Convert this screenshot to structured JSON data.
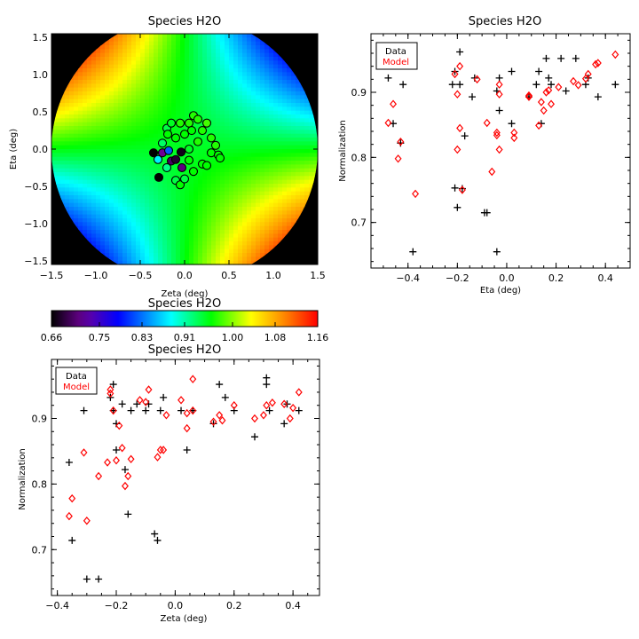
{
  "chart_data": [
    {
      "type": "heatmap",
      "title": "Species H2O",
      "xlabel": "Zeta (deg)",
      "ylabel": "Eta (deg)",
      "xlim": [
        -1.5,
        1.5
      ],
      "ylim": [
        -1.55,
        1.55
      ],
      "xticks": [
        "−1.5",
        "−1.0",
        "−0.5",
        "0.0",
        "0.5",
        "1.0",
        "1.5"
      ],
      "yticks": [
        "−1.5",
        "−1.0",
        "−0.5",
        "0.0",
        "0.5",
        "1.0",
        "1.5"
      ],
      "field_description": "circular field of radius 1.5 deg, saddle-shaped normalization map: high (red) toward upper-left and lower-right, low (black/purple) toward lower-left and upper-right, cyan near centre",
      "points": [
        {
          "x": -0.35,
          "y": -0.05,
          "v": 0.66
        },
        {
          "x": -0.3,
          "y": -0.14,
          "v": 0.88
        },
        {
          "x": -0.29,
          "y": -0.38,
          "v": 0.66
        },
        {
          "x": -0.25,
          "y": -0.05,
          "v": 0.72
        },
        {
          "x": -0.18,
          "y": -0.02,
          "v": 0.82
        },
        {
          "x": -0.15,
          "y": -0.16,
          "v": 0.7
        },
        {
          "x": -0.1,
          "y": -0.14,
          "v": 0.68
        },
        {
          "x": -0.04,
          "y": -0.04,
          "v": 0.67
        },
        {
          "x": -0.03,
          "y": -0.25,
          "v": 0.71
        },
        {
          "x": -0.25,
          "y": 0.08,
          "v": 0.93
        },
        {
          "x": -0.2,
          "y": 0.28,
          "v": 0.94
        },
        {
          "x": -0.19,
          "y": 0.2,
          "v": 0.96
        },
        {
          "x": -0.1,
          "y": 0.15,
          "v": 0.96
        },
        {
          "x": -0.05,
          "y": 0.35,
          "v": 0.97
        },
        {
          "x": 0.05,
          "y": 0.35,
          "v": 0.97
        },
        {
          "x": 0.08,
          "y": 0.25,
          "v": 0.96
        },
        {
          "x": 0.15,
          "y": 0.1,
          "v": 0.97
        },
        {
          "x": 0.2,
          "y": 0.25,
          "v": 0.97
        },
        {
          "x": 0.25,
          "y": 0.35,
          "v": 0.98
        },
        {
          "x": 0.3,
          "y": 0.15,
          "v": 0.97
        },
        {
          "x": 0.35,
          "y": 0.05,
          "v": 0.97
        },
        {
          "x": 0.3,
          "y": -0.05,
          "v": 0.96
        },
        {
          "x": 0.38,
          "y": -0.08,
          "v": 0.96
        },
        {
          "x": 0.2,
          "y": -0.2,
          "v": 0.96
        },
        {
          "x": 0.25,
          "y": -0.22,
          "v": 0.96
        },
        {
          "x": 0.1,
          "y": -0.3,
          "v": 0.96
        },
        {
          "x": -0.1,
          "y": -0.42,
          "v": 0.94
        },
        {
          "x": -0.05,
          "y": -0.48,
          "v": 0.96
        },
        {
          "x": 0.0,
          "y": -0.4,
          "v": 0.94
        },
        {
          "x": 0.1,
          "y": 0.45,
          "v": 0.97
        },
        {
          "x": 0.0,
          "y": 0.2,
          "v": 0.96
        },
        {
          "x": -0.15,
          "y": 0.35,
          "v": 0.95
        },
        {
          "x": 0.05,
          "y": 0.0,
          "v": 0.95
        },
        {
          "x": -0.2,
          "y": -0.25,
          "v": 0.92
        },
        {
          "x": 0.15,
          "y": 0.4,
          "v": 0.97
        },
        {
          "x": 0.05,
          "y": -0.15,
          "v": 0.96
        },
        {
          "x": 0.4,
          "y": -0.12,
          "v": 0.96
        }
      ]
    },
    {
      "type": "colorbar",
      "title": "Species H2O",
      "ticks": [
        "0.66",
        "0.75",
        "0.83",
        "0.91",
        "1.00",
        "1.08",
        "1.16"
      ],
      "range": [
        0.66,
        1.16
      ]
    },
    {
      "type": "scatter",
      "title": "Species H2O",
      "xlabel": "Eta (deg)",
      "ylabel": "Normalization",
      "xlim": [
        -0.55,
        0.5
      ],
      "ylim": [
        0.63,
        0.99
      ],
      "xticks": [
        "−0.4",
        "−0.2",
        "0.0",
        "0.2",
        "0.4"
      ],
      "yticks": [
        "0.7",
        "0.8",
        "0.9"
      ],
      "legend": {
        "placement": "top-left",
        "entries": [
          "Data",
          "Model"
        ]
      },
      "series": [
        {
          "name": "Data",
          "color": "#000000",
          "marker": "plus",
          "points": [
            [
              -0.48,
              0.922
            ],
            [
              -0.46,
              0.852
            ],
            [
              -0.43,
              0.822
            ],
            [
              -0.42,
              0.912
            ],
            [
              -0.38,
              0.655
            ],
            [
              -0.21,
              0.932
            ],
            [
              -0.21,
              0.753
            ],
            [
              -0.22,
              0.912
            ],
            [
              -0.19,
              0.912
            ],
            [
              -0.19,
              0.962
            ],
            [
              -0.2,
              0.723
            ],
            [
              -0.18,
              0.752
            ],
            [
              -0.17,
              0.833
            ],
            [
              -0.14,
              0.893
            ],
            [
              -0.13,
              0.922
            ],
            [
              -0.09,
              0.715
            ],
            [
              -0.08,
              0.715
            ],
            [
              -0.04,
              0.655
            ],
            [
              -0.04,
              0.902
            ],
            [
              -0.03,
              0.872
            ],
            [
              0.02,
              0.932
            ],
            [
              0.02,
              0.852
            ],
            [
              0.09,
              0.893
            ],
            [
              0.12,
              0.912
            ],
            [
              0.13,
              0.932
            ],
            [
              0.14,
              0.852
            ],
            [
              0.16,
              0.952
            ],
            [
              0.17,
              0.922
            ],
            [
              0.18,
              0.912
            ],
            [
              0.22,
              0.952
            ],
            [
              0.24,
              0.902
            ],
            [
              0.28,
              0.952
            ],
            [
              0.32,
              0.912
            ],
            [
              0.33,
              0.922
            ],
            [
              0.37,
              0.893
            ],
            [
              0.44,
              0.912
            ],
            [
              -0.03,
              0.922
            ]
          ]
        },
        {
          "name": "Model",
          "color": "#ff0000",
          "marker": "diamond",
          "points": [
            [
              -0.48,
              0.853
            ],
            [
              -0.46,
              0.882
            ],
            [
              -0.44,
              0.798
            ],
            [
              -0.43,
              0.824
            ],
            [
              -0.37,
              0.744
            ],
            [
              -0.21,
              0.928
            ],
            [
              -0.2,
              0.812
            ],
            [
              -0.2,
              0.897
            ],
            [
              -0.19,
              0.94
            ],
            [
              -0.19,
              0.845
            ],
            [
              -0.18,
              0.75
            ],
            [
              -0.12,
              0.92
            ],
            [
              -0.08,
              0.853
            ],
            [
              -0.06,
              0.778
            ],
            [
              -0.04,
              0.838
            ],
            [
              -0.04,
              0.834
            ],
            [
              -0.03,
              0.812
            ],
            [
              -0.03,
              0.897
            ],
            [
              -0.03,
              0.912
            ],
            [
              0.03,
              0.83
            ],
            [
              0.03,
              0.838
            ],
            [
              0.09,
              0.893
            ],
            [
              0.09,
              0.895
            ],
            [
              0.13,
              0.849
            ],
            [
              0.14,
              0.885
            ],
            [
              0.15,
              0.872
            ],
            [
              0.16,
              0.9
            ],
            [
              0.17,
              0.903
            ],
            [
              0.18,
              0.882
            ],
            [
              0.21,
              0.908
            ],
            [
              0.27,
              0.917
            ],
            [
              0.29,
              0.911
            ],
            [
              0.32,
              0.921
            ],
            [
              0.33,
              0.928
            ],
            [
              0.36,
              0.943
            ],
            [
              0.37,
              0.945
            ],
            [
              0.44,
              0.958
            ]
          ]
        }
      ]
    },
    {
      "type": "scatter",
      "title": "Species H2O",
      "xlabel": "Zeta (deg)",
      "ylabel": "Normalization",
      "xlim": [
        -0.42,
        0.49
      ],
      "ylim": [
        0.63,
        0.99
      ],
      "xticks": [
        "−0.4",
        "−0.2",
        "0.0",
        "0.2",
        "0.4"
      ],
      "yticks": [
        "0.7",
        "0.8",
        "0.9"
      ],
      "legend": {
        "placement": "top-left",
        "entries": [
          "Data",
          "Model"
        ]
      },
      "series": [
        {
          "name": "Data",
          "color": "#000000",
          "marker": "plus",
          "points": [
            [
              -0.36,
              0.833
            ],
            [
              -0.35,
              0.714
            ],
            [
              -0.31,
              0.912
            ],
            [
              -0.3,
              0.655
            ],
            [
              -0.26,
              0.655
            ],
            [
              -0.22,
              0.932
            ],
            [
              -0.21,
              0.952
            ],
            [
              -0.21,
              0.912
            ],
            [
              -0.2,
              0.852
            ],
            [
              -0.2,
              0.892
            ],
            [
              -0.18,
              0.922
            ],
            [
              -0.17,
              0.822
            ],
            [
              -0.16,
              0.754
            ],
            [
              -0.15,
              0.912
            ],
            [
              -0.13,
              0.922
            ],
            [
              -0.1,
              0.912
            ],
            [
              -0.09,
              0.922
            ],
            [
              -0.07,
              0.724
            ],
            [
              -0.05,
              0.912
            ],
            [
              -0.04,
              0.932
            ],
            [
              -0.06,
              0.714
            ],
            [
              0.02,
              0.912
            ],
            [
              0.04,
              0.852
            ],
            [
              0.06,
              0.912
            ],
            [
              0.13,
              0.892
            ],
            [
              0.15,
              0.952
            ],
            [
              0.17,
              0.932
            ],
            [
              0.2,
              0.912
            ],
            [
              0.27,
              0.872
            ],
            [
              0.31,
              0.962
            ],
            [
              0.31,
              0.952
            ],
            [
              0.32,
              0.912
            ],
            [
              0.37,
              0.892
            ],
            [
              0.38,
              0.922
            ],
            [
              0.42,
              0.912
            ]
          ]
        },
        {
          "name": "Model",
          "color": "#ff0000",
          "marker": "diamond",
          "points": [
            [
              -0.36,
              0.751
            ],
            [
              -0.35,
              0.778
            ],
            [
              -0.31,
              0.848
            ],
            [
              -0.3,
              0.744
            ],
            [
              -0.26,
              0.812
            ],
            [
              -0.23,
              0.833
            ],
            [
              -0.22,
              0.938
            ],
            [
              -0.22,
              0.944
            ],
            [
              -0.21,
              0.912
            ],
            [
              -0.2,
              0.836
            ],
            [
              -0.19,
              0.889
            ],
            [
              -0.18,
              0.855
            ],
            [
              -0.17,
              0.797
            ],
            [
              -0.16,
              0.812
            ],
            [
              -0.15,
              0.838
            ],
            [
              -0.12,
              0.928
            ],
            [
              -0.1,
              0.925
            ],
            [
              -0.09,
              0.944
            ],
            [
              -0.06,
              0.841
            ],
            [
              -0.05,
              0.852
            ],
            [
              -0.04,
              0.852
            ],
            [
              -0.03,
              0.905
            ],
            [
              0.02,
              0.928
            ],
            [
              0.04,
              0.885
            ],
            [
              0.04,
              0.908
            ],
            [
              0.06,
              0.96
            ],
            [
              0.06,
              0.912
            ],
            [
              0.13,
              0.895
            ],
            [
              0.15,
              0.905
            ],
            [
              0.16,
              0.897
            ],
            [
              0.2,
              0.92
            ],
            [
              0.27,
              0.9
            ],
            [
              0.3,
              0.905
            ],
            [
              0.31,
              0.92
            ],
            [
              0.33,
              0.924
            ],
            [
              0.37,
              0.922
            ],
            [
              0.39,
              0.9
            ],
            [
              0.4,
              0.916
            ],
            [
              0.42,
              0.94
            ]
          ]
        }
      ]
    }
  ]
}
